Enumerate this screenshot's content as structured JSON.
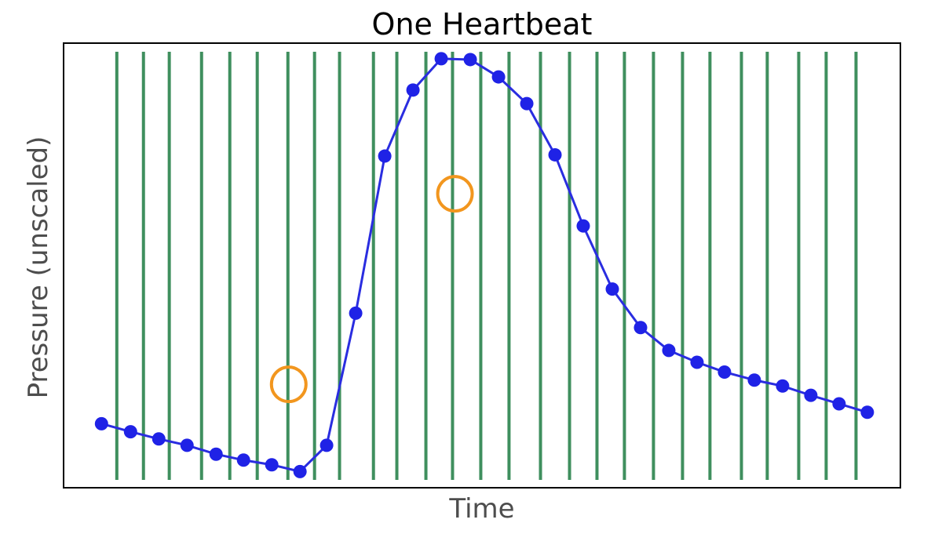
{
  "chart_data": {
    "type": "line",
    "title": "One Heartbeat",
    "xlabel": "Time",
    "ylabel": "Pressure (unscaled)",
    "xlim": [
      0,
      1
    ],
    "ylim": [
      0,
      1
    ],
    "grid": false,
    "ticks": "none",
    "colors": {
      "line": "#2a2de0",
      "points": "#1f22e6",
      "sample_lines": "#3f8f5e",
      "highlight": "#f2961e",
      "frame": "#000000"
    },
    "series": [
      {
        "x": [
          0.046,
          0.082,
          0.117,
          0.152,
          0.188,
          0.222,
          0.257,
          0.292,
          0.325,
          0.361,
          0.397,
          0.432,
          0.467,
          0.503,
          0.538,
          0.573,
          0.608,
          0.643,
          0.679,
          0.714,
          0.749,
          0.784,
          0.818,
          0.855,
          0.89,
          0.925,
          0.96,
          0.995
        ],
        "y": [
          0.129,
          0.11,
          0.093,
          0.078,
          0.057,
          0.043,
          0.032,
          0.016,
          0.078,
          0.39,
          0.761,
          0.917,
          0.991,
          0.989,
          0.948,
          0.885,
          0.764,
          0.596,
          0.447,
          0.356,
          0.302,
          0.274,
          0.251,
          0.232,
          0.218,
          0.196,
          0.176,
          0.156
        ]
      }
    ],
    "sample_lines_x": [
      0.065,
      0.098,
      0.13,
      0.17,
      0.205,
      0.239,
      0.277,
      0.31,
      0.341,
      0.383,
      0.412,
      0.448,
      0.481,
      0.516,
      0.551,
      0.59,
      0.626,
      0.66,
      0.694,
      0.73,
      0.766,
      0.8,
      0.839,
      0.871,
      0.91,
      0.944,
      0.981
    ],
    "highlight_points": [
      {
        "x": 0.278,
        "y": 0.222
      },
      {
        "x": 0.484,
        "y": 0.672
      }
    ]
  }
}
